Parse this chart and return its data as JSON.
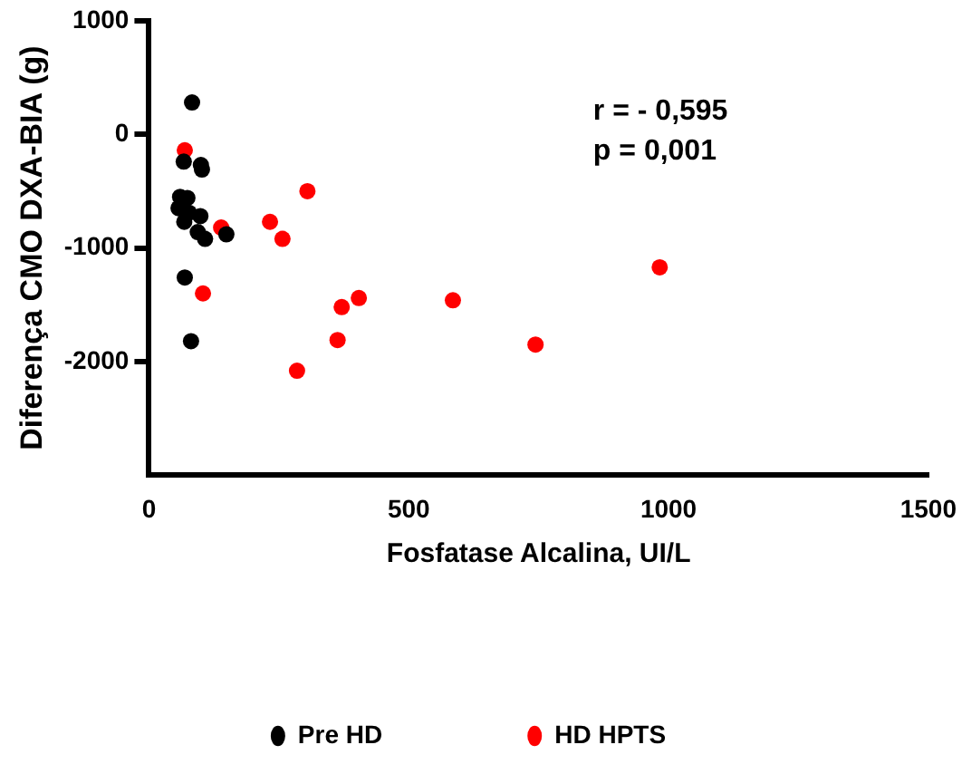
{
  "chart_data": {
    "type": "scatter",
    "xlabel": "Fosfatase Alcalina, UI/L",
    "ylabel": "Diferença CMO DXA-BIA (g)",
    "xlim": [
      0,
      1500
    ],
    "xticks": [
      0,
      500,
      1000,
      1500
    ],
    "ylim": [
      -3000,
      1000
    ],
    "yticks": [
      1000,
      0,
      -1000,
      -2000
    ],
    "grid": false,
    "legend": "bottom",
    "marker": "circle",
    "annotations": [
      "r = - 0,595",
      "p = 0,001"
    ],
    "series": [
      {
        "name": "Pre HD",
        "color": "#000000",
        "x": [
          83,
          67,
          100,
          102,
          60,
          74,
          57,
          77,
          99,
          68,
          94,
          108,
          149,
          69,
          81
        ],
        "values": [
          280,
          -240,
          -270,
          -310,
          -550,
          -560,
          -650,
          -690,
          -720,
          -770,
          -860,
          -920,
          -880,
          -1260,
          -1820
        ]
      },
      {
        "name": "HD HPTS",
        "color": "#ff0000",
        "x": [
          69,
          139,
          104,
          233,
          257,
          305,
          285,
          363,
          371,
          404,
          585,
          744,
          983
        ],
        "values": [
          -140,
          -820,
          -1400,
          -770,
          -920,
          -500,
          -2080,
          -1810,
          -1520,
          -1440,
          -1460,
          -1850,
          -1170
        ]
      }
    ]
  }
}
